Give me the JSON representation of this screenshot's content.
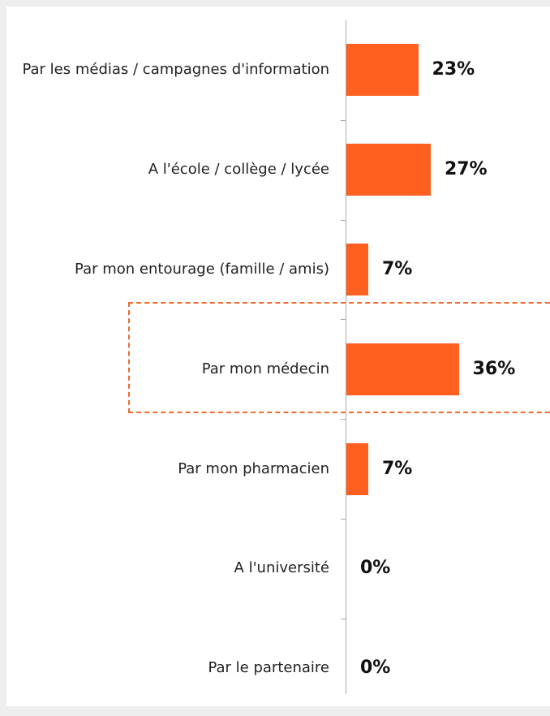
{
  "chart_data": {
    "type": "bar",
    "orientation": "horizontal",
    "categories": [
      "Par les médias / campagnes d'information",
      "A l'école / collège / lycée",
      "Par mon entourage (famille / amis)",
      "Par mon médecin",
      "Par mon pharmacien",
      "A l'université",
      "Par le partenaire"
    ],
    "values": [
      23,
      27,
      7,
      36,
      7,
      0,
      0
    ],
    "value_labels": [
      "23%",
      "27%",
      "7%",
      "36%",
      "7%",
      "0%",
      "0%"
    ],
    "color": "#ff5f1f"
  }
}
